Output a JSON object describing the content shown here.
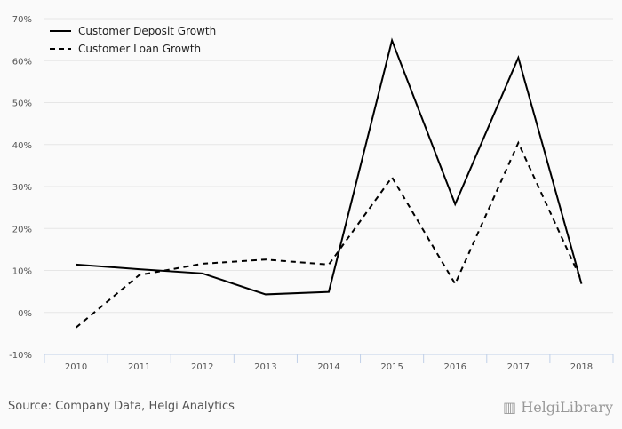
{
  "chart_data": {
    "type": "line",
    "title": "",
    "xlabel": "",
    "ylabel": "",
    "categories": [
      "2010",
      "2011",
      "2012",
      "2013",
      "2014",
      "2015",
      "2016",
      "2017",
      "2018"
    ],
    "series": [
      {
        "name": "Customer Deposit Growth",
        "style": "solid",
        "values": [
          11.4,
          10.3,
          9.3,
          4.3,
          4.9,
          64.8,
          25.8,
          60.7,
          6.8
        ]
      },
      {
        "name": "Customer Loan Growth",
        "style": "dashed",
        "values": [
          -3.6,
          8.9,
          11.6,
          12.6,
          11.4,
          32.2,
          6.8,
          40.4,
          7.6
        ]
      }
    ],
    "ylim": [
      -10,
      70
    ],
    "yticks": [
      -10,
      0,
      10,
      20,
      30,
      40,
      50,
      60,
      70
    ],
    "ytick_labels": [
      "-10%",
      "0%",
      "10%",
      "20%",
      "30%",
      "40%",
      "50%",
      "60%",
      "70%"
    ],
    "grid": true,
    "legend": "top-left",
    "line_color": "#000000",
    "grid_color": "#e6e6e6",
    "axis_color": "#c0d0e8"
  },
  "footer": {
    "source": "Source: Company Data, Helgi Analytics",
    "logo": "HelgiLibrary"
  }
}
